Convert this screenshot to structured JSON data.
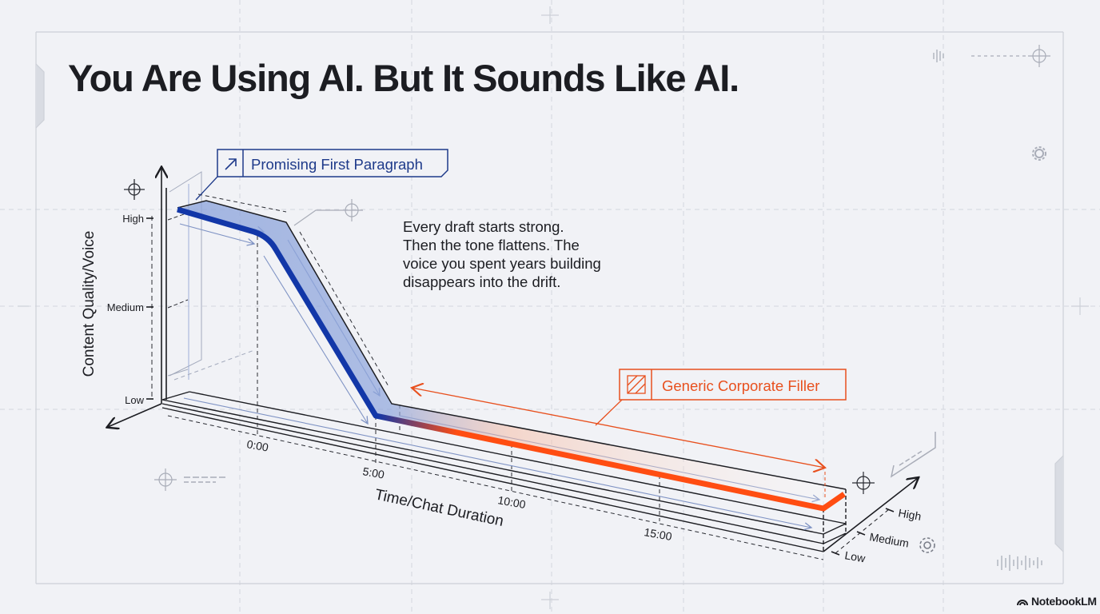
{
  "title": "You Are Using AI. But It Sounds Like AI.",
  "description_lines": [
    "Every draft starts strong.",
    "Then the tone flattens. The",
    "voice you spent years building",
    "disappears into the drift."
  ],
  "callouts": {
    "start": {
      "label": "Promising First Paragraph",
      "icon": "arrow-up-right-icon",
      "color": "#1e3a8a"
    },
    "end": {
      "label": "Generic Corporate Filler",
      "icon": "hatch-icon",
      "color": "#e8501e"
    }
  },
  "y_axis": {
    "label": "Content Quality/Voice",
    "ticks": [
      "High",
      "Medium",
      "Low"
    ]
  },
  "x_axis": {
    "label": "Time/Chat Duration",
    "ticks": [
      "0:00",
      "5:00",
      "10:00",
      "15:00"
    ]
  },
  "z_axis": {
    "ticks": [
      "High",
      "Medium",
      "Low"
    ]
  },
  "colors": {
    "high_quality": "#1237a8",
    "low_quality": "#ff4d12",
    "background": "#f1f2f6"
  },
  "brand": "NotebookLM"
}
